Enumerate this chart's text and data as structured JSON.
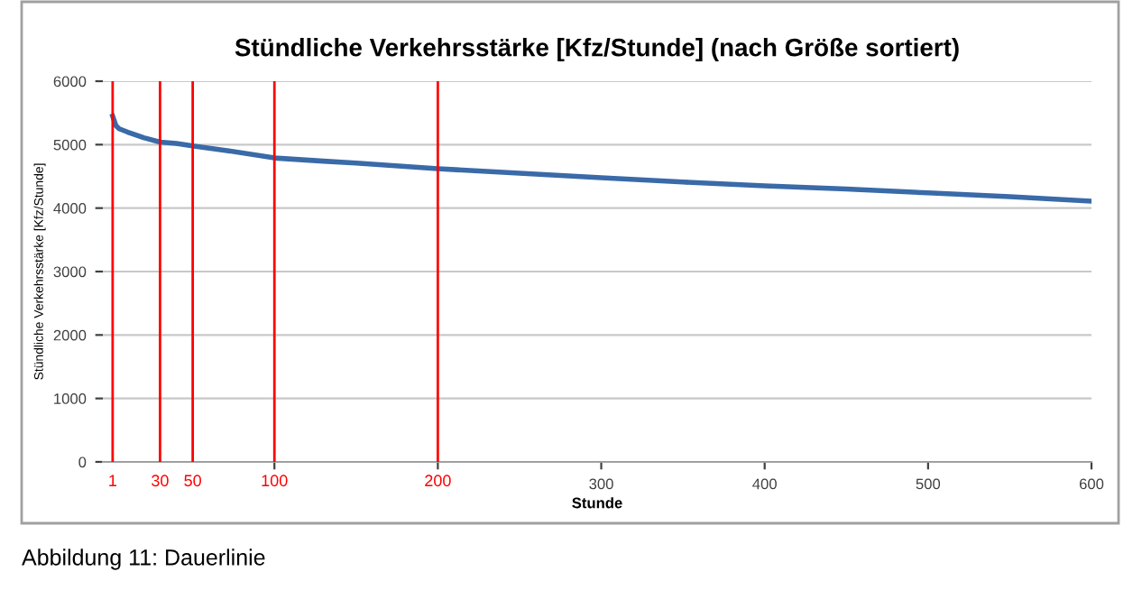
{
  "chart_data": {
    "type": "line",
    "title": "Stündliche Verkehrsstärke [Kfz/Stunde] (nach Größe sortiert)",
    "xlabel": "Stunde",
    "ylabel": "Stündliche Verkehrsstärke [Kfz/Stunde]",
    "x": [
      1,
      3,
      5,
      10,
      20,
      30,
      40,
      50,
      70,
      100,
      130,
      150,
      200,
      250,
      300,
      350,
      400,
      450,
      500,
      550,
      600
    ],
    "series": [
      {
        "color": "#3a6aa8",
        "values": [
          5450,
          5300,
          5250,
          5200,
          5110,
          5040,
          5020,
          4980,
          4910,
          4790,
          4740,
          4710,
          4620,
          4550,
          4480,
          4410,
          4350,
          4300,
          4240,
          4180,
          4110
        ]
      }
    ],
    "xlim": [
      -5,
      600
    ],
    "ylim": [
      0,
      6000
    ],
    "xticks": [
      {
        "value": 100,
        "label": null
      },
      {
        "value": 200,
        "label": null
      },
      300,
      400,
      500,
      600
    ],
    "yticks": [
      0,
      1000,
      2000,
      3000,
      4000,
      5000,
      6000
    ],
    "grid": "y",
    "legend": false,
    "marker": "none",
    "line_style": "solid",
    "ref_lines": [
      {
        "axis": "x",
        "value": 1,
        "label": "1",
        "color": "#ff0000"
      },
      {
        "axis": "x",
        "value": 30,
        "label": "30",
        "color": "#ff0000"
      },
      {
        "axis": "x",
        "value": 50,
        "label": "50",
        "color": "#ff0000"
      },
      {
        "axis": "x",
        "value": 100,
        "label": "100",
        "color": "#ff0000"
      },
      {
        "axis": "x",
        "value": 200,
        "label": "200",
        "color": "#ff0000"
      }
    ],
    "annotations": [
      "Abbildung 11: Dauerlinie"
    ]
  }
}
